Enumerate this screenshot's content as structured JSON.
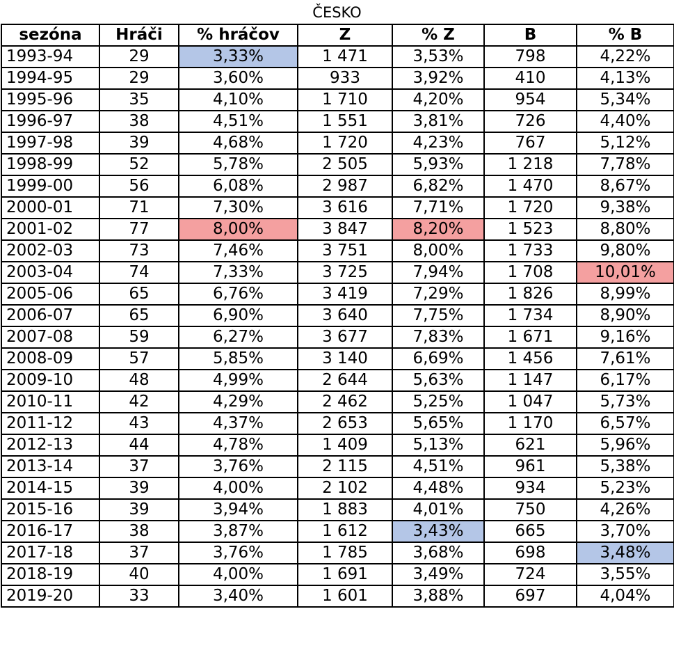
{
  "title": "ČESKO",
  "columns": [
    "sezóna",
    "Hráči",
    "% hráčov",
    "Z",
    "% Z",
    "B",
    "% B"
  ],
  "colors": {
    "min_highlight": "#b4c6e7",
    "max_highlight": "#f4a0a0"
  },
  "rows": [
    {
      "season": "1993-94",
      "players": "29",
      "pct_players": "3,33%",
      "z": "1 471",
      "pct_z": "3,53%",
      "b": "798",
      "pct_b": "4,22%",
      "hl": {
        "pct_players": "min"
      }
    },
    {
      "season": "1994-95",
      "players": "29",
      "pct_players": "3,60%",
      "z": "933",
      "pct_z": "3,92%",
      "b": "410",
      "pct_b": "4,13%",
      "hl": {}
    },
    {
      "season": "1995-96",
      "players": "35",
      "pct_players": "4,10%",
      "z": "1 710",
      "pct_z": "4,20%",
      "b": "954",
      "pct_b": "5,34%",
      "hl": {}
    },
    {
      "season": "1996-97",
      "players": "38",
      "pct_players": "4,51%",
      "z": "1 551",
      "pct_z": "3,81%",
      "b": "726",
      "pct_b": "4,40%",
      "hl": {}
    },
    {
      "season": "1997-98",
      "players": "39",
      "pct_players": "4,68%",
      "z": "1 720",
      "pct_z": "4,23%",
      "b": "767",
      "pct_b": "5,12%",
      "hl": {}
    },
    {
      "season": "1998-99",
      "players": "52",
      "pct_players": "5,78%",
      "z": "2 505",
      "pct_z": "5,93%",
      "b": "1 218",
      "pct_b": "7,78%",
      "hl": {}
    },
    {
      "season": "1999-00",
      "players": "56",
      "pct_players": "6,08%",
      "z": "2 987",
      "pct_z": "6,82%",
      "b": "1 470",
      "pct_b": "8,67%",
      "hl": {}
    },
    {
      "season": "2000-01",
      "players": "71",
      "pct_players": "7,30%",
      "z": "3 616",
      "pct_z": "7,71%",
      "b": "1 720",
      "pct_b": "9,38%",
      "hl": {}
    },
    {
      "season": "2001-02",
      "players": "77",
      "pct_players": "8,00%",
      "z": "3 847",
      "pct_z": "8,20%",
      "b": "1 523",
      "pct_b": "8,80%",
      "hl": {
        "pct_players": "max",
        "pct_z": "max"
      }
    },
    {
      "season": "2002-03",
      "players": "73",
      "pct_players": "7,46%",
      "z": "3 751",
      "pct_z": "8,00%",
      "b": "1 733",
      "pct_b": "9,80%",
      "hl": {}
    },
    {
      "season": "2003-04",
      "players": "74",
      "pct_players": "7,33%",
      "z": "3 725",
      "pct_z": "7,94%",
      "b": "1 708",
      "pct_b": "10,01%",
      "hl": {
        "pct_b": "max"
      }
    },
    {
      "season": "2005-06",
      "players": "65",
      "pct_players": "6,76%",
      "z": "3 419",
      "pct_z": "7,29%",
      "b": "1 826",
      "pct_b": "8,99%",
      "hl": {}
    },
    {
      "season": "2006-07",
      "players": "65",
      "pct_players": "6,90%",
      "z": "3 640",
      "pct_z": "7,75%",
      "b": "1 734",
      "pct_b": "8,90%",
      "hl": {}
    },
    {
      "season": "2007-08",
      "players": "59",
      "pct_players": "6,27%",
      "z": "3 677",
      "pct_z": "7,83%",
      "b": "1 671",
      "pct_b": "9,16%",
      "hl": {}
    },
    {
      "season": "2008-09",
      "players": "57",
      "pct_players": "5,85%",
      "z": "3 140",
      "pct_z": "6,69%",
      "b": "1 456",
      "pct_b": "7,61%",
      "hl": {}
    },
    {
      "season": "2009-10",
      "players": "48",
      "pct_players": "4,99%",
      "z": "2 644",
      "pct_z": "5,63%",
      "b": "1 147",
      "pct_b": "6,17%",
      "hl": {}
    },
    {
      "season": "2010-11",
      "players": "42",
      "pct_players": "4,29%",
      "z": "2 462",
      "pct_z": "5,25%",
      "b": "1 047",
      "pct_b": "5,73%",
      "hl": {}
    },
    {
      "season": "2011-12",
      "players": "43",
      "pct_players": "4,37%",
      "z": "2 653",
      "pct_z": "5,65%",
      "b": "1 170",
      "pct_b": "6,57%",
      "hl": {}
    },
    {
      "season": "2012-13",
      "players": "44",
      "pct_players": "4,78%",
      "z": "1 409",
      "pct_z": "5,13%",
      "b": "621",
      "pct_b": "5,96%",
      "hl": {}
    },
    {
      "season": "2013-14",
      "players": "37",
      "pct_players": "3,76%",
      "z": "2 115",
      "pct_z": "4,51%",
      "b": "961",
      "pct_b": "5,38%",
      "hl": {}
    },
    {
      "season": "2014-15",
      "players": "39",
      "pct_players": "4,00%",
      "z": "2 102",
      "pct_z": "4,48%",
      "b": "934",
      "pct_b": "5,23%",
      "hl": {}
    },
    {
      "season": "2015-16",
      "players": "39",
      "pct_players": "3,94%",
      "z": "1 883",
      "pct_z": "4,01%",
      "b": "750",
      "pct_b": "4,26%",
      "hl": {}
    },
    {
      "season": "2016-17",
      "players": "38",
      "pct_players": "3,87%",
      "z": "1 612",
      "pct_z": "3,43%",
      "b": "665",
      "pct_b": "3,70%",
      "hl": {
        "pct_z": "min"
      }
    },
    {
      "season": "2017-18",
      "players": "37",
      "pct_players": "3,76%",
      "z": "1 785",
      "pct_z": "3,68%",
      "b": "698",
      "pct_b": "3,48%",
      "hl": {
        "pct_b": "min"
      }
    },
    {
      "season": "2018-19",
      "players": "40",
      "pct_players": "4,00%",
      "z": "1 691",
      "pct_z": "3,49%",
      "b": "724",
      "pct_b": "3,55%",
      "hl": {}
    },
    {
      "season": "2019-20",
      "players": "33",
      "pct_players": "3,40%",
      "z": "1 601",
      "pct_z": "3,88%",
      "b": "697",
      "pct_b": "4,04%",
      "hl": {}
    }
  ]
}
